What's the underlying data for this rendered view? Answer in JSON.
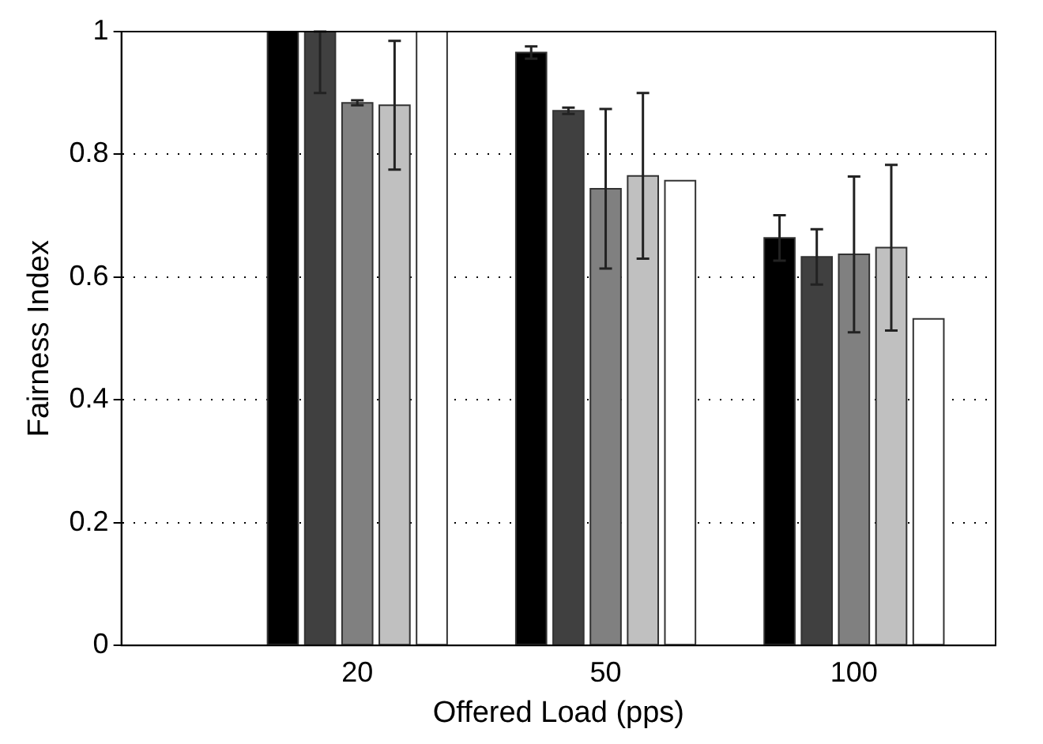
{
  "chart_data": {
    "type": "bar",
    "xlabel": "Offered Load (pps)",
    "ylabel": "Fairness Index",
    "categories": [
      "20",
      "50",
      "100"
    ],
    "series": [
      {
        "color": "#000000",
        "values": [
          1,
          0.966,
          0.664
        ],
        "errors": [
          null,
          0.01,
          0.037
        ]
      },
      {
        "color": "#404040",
        "values": [
          1,
          0.871,
          0.633
        ],
        "errors": [
          [
            0.9,
            1
          ],
          0.005,
          0.045
        ]
      },
      {
        "color": "#808080",
        "values": [
          0.884,
          0.744,
          0.637
        ],
        "errors": [
          0.004,
          0.13,
          0.127
        ]
      },
      {
        "color": "#c0c0c0",
        "values": [
          0.88,
          0.765,
          0.648
        ],
        "errors": [
          0.105,
          0.135,
          0.135
        ]
      },
      {
        "color": "#ffffff",
        "values": [
          1,
          0.757,
          0.532
        ]
      }
    ],
    "ylim": [
      0,
      1
    ],
    "yticks": [
      0,
      0.2,
      0.4,
      0.6,
      0.8,
      1
    ],
    "grid": "y",
    "legend": false
  }
}
